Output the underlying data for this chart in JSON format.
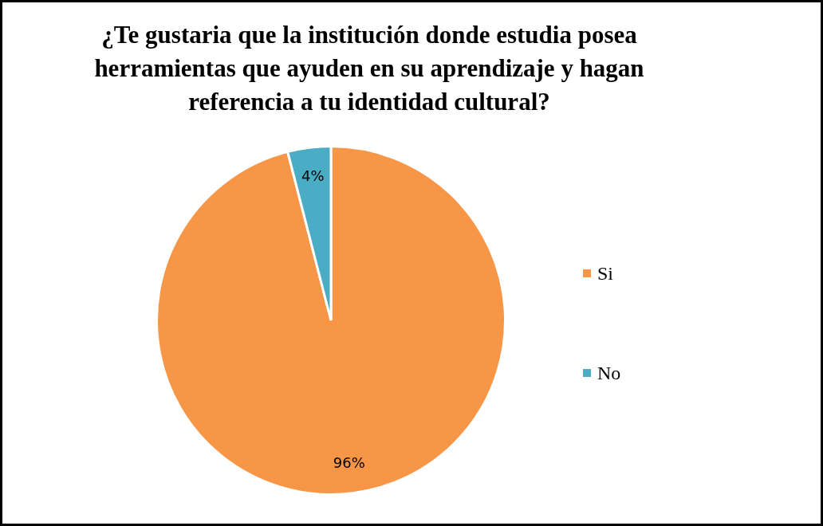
{
  "chart_data": {
    "type": "pie",
    "title": "¿Te gustaria que la institución donde estudia posea herramientas que ayuden en su aprendizaje y hagan referencia a tu identidad cultural?",
    "categories": [
      "Si",
      "No"
    ],
    "values": [
      96,
      4
    ],
    "colors": [
      "#f79646",
      "#4bacc6"
    ],
    "value_labels": [
      "96%",
      "4%"
    ],
    "legend": "right"
  }
}
